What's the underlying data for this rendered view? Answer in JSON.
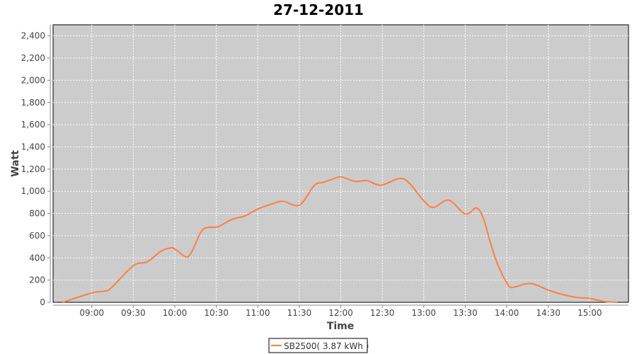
{
  "chart_data": {
    "type": "line",
    "title": "27-12-2011",
    "xlabel": "Time",
    "ylabel": "Watt",
    "xlim": [
      "08:32",
      "15:28"
    ],
    "ylim": [
      0,
      2500
    ],
    "x_ticks": [
      "09:00",
      "09:30",
      "10:00",
      "10:30",
      "11:00",
      "11:30",
      "12:00",
      "12:30",
      "13:00",
      "13:30",
      "14:00",
      "14:30",
      "15:00"
    ],
    "y_ticks": [
      "0",
      "200",
      "400",
      "600",
      "800",
      "1,000",
      "1,200",
      "1,400",
      "1,600",
      "1,800",
      "2,000",
      "2,200",
      "2,400"
    ],
    "y_tick_values": [
      0,
      200,
      400,
      600,
      800,
      1000,
      1200,
      1400,
      1600,
      1800,
      2000,
      2200,
      2400
    ],
    "grid": true,
    "legend_position": "bottom",
    "plot_background": "#cccccc",
    "series": [
      {
        "name": "SB2500( 3.87 kWh )",
        "color": "#ff7f3f",
        "x": [
          "08:39",
          "09:00",
          "09:09",
          "09:14",
          "09:30",
          "09:40",
          "09:50",
          "09:57",
          "10:00",
          "10:08",
          "10:12",
          "10:19",
          "10:24",
          "10:31",
          "10:41",
          "10:51",
          "11:00",
          "11:10",
          "11:18",
          "11:28",
          "11:33",
          "11:41",
          "11:47",
          "11:52",
          "12:00",
          "12:10",
          "12:19",
          "12:29",
          "12:42",
          "12:49",
          "13:00",
          "13:07",
          "13:18",
          "13:30",
          "13:38",
          "13:43",
          "13:48",
          "13:53",
          "14:00",
          "14:04",
          "14:17",
          "14:30",
          "14:38",
          "14:50",
          "15:00",
          "15:10",
          "15:20"
        ],
        "y": [
          0,
          85,
          100,
          130,
          330,
          365,
          460,
          490,
          480,
          410,
          450,
          635,
          675,
          680,
          745,
          780,
          840,
          885,
          910,
          870,
          910,
          1055,
          1080,
          1100,
          1130,
          1090,
          1095,
          1055,
          1115,
          1080,
          915,
          855,
          920,
          795,
          850,
          760,
          545,
          355,
          175,
          135,
          170,
          110,
          78,
          45,
          35,
          8,
          0
        ]
      }
    ]
  }
}
